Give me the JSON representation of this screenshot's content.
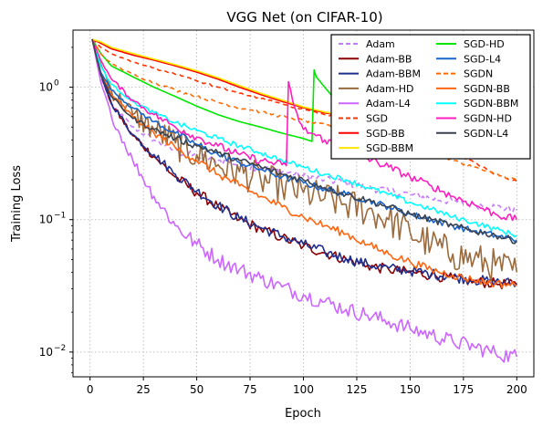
{
  "chart_data": {
    "type": "line",
    "title": "VGG Net (on CIFAR-10)",
    "xlabel": "Epoch",
    "ylabel": "Training Loss",
    "xlim": [
      -8,
      208
    ],
    "ylim": [
      0.0065,
      2.7
    ],
    "yscale": "log",
    "grid": true,
    "legend_position": "top-right",
    "legend_columns": 2,
    "xticks": [
      {
        "v": 0,
        "label": "0"
      },
      {
        "v": 25,
        "label": "25"
      },
      {
        "v": 50,
        "label": "50"
      },
      {
        "v": 75,
        "label": "75"
      },
      {
        "v": 100,
        "label": "100"
      },
      {
        "v": 125,
        "label": "125"
      },
      {
        "v": 150,
        "label": "150"
      },
      {
        "v": 175,
        "label": "175"
      },
      {
        "v": 200,
        "label": "200"
      }
    ],
    "yticks": [
      {
        "v": 1,
        "base": "10",
        "exp": "0"
      },
      {
        "v": 0.1,
        "base": "10",
        "exp": "−1"
      },
      {
        "v": 0.01,
        "base": "10",
        "exp": "−2"
      }
    ],
    "series": [
      {
        "name": "Adam",
        "color": "#c77cff",
        "dash": "dashed",
        "x": [
          1,
          5,
          10,
          20,
          30,
          40,
          50,
          60,
          70,
          80,
          90,
          100,
          110,
          120,
          130,
          140,
          150,
          160,
          170,
          180,
          190,
          200
        ],
        "y": [
          2.3,
          1.2,
          0.74,
          0.5,
          0.4,
          0.33,
          0.3,
          0.28,
          0.26,
          0.245,
          0.23,
          0.215,
          0.2,
          0.19,
          0.175,
          0.165,
          0.155,
          0.145,
          0.137,
          0.13,
          0.125,
          0.118
        ],
        "noise": 0.03
      },
      {
        "name": "Adam-BB",
        "color": "#8b0000",
        "dash": "solid",
        "x": [
          1,
          5,
          10,
          20,
          30,
          40,
          50,
          60,
          70,
          80,
          90,
          100,
          110,
          120,
          130,
          140,
          150,
          160,
          170,
          180,
          190,
          200
        ],
        "y": [
          2.3,
          1.25,
          0.75,
          0.43,
          0.3,
          0.21,
          0.16,
          0.125,
          0.1,
          0.085,
          0.073,
          0.063,
          0.056,
          0.05,
          0.045,
          0.042,
          0.04,
          0.038,
          0.036,
          0.034,
          0.033,
          0.032
        ],
        "noise": 0.04
      },
      {
        "name": "Adam-BBM",
        "color": "#1f2f8f",
        "dash": "solid",
        "x": [
          1,
          5,
          10,
          20,
          30,
          40,
          50,
          60,
          70,
          80,
          90,
          100,
          110,
          120,
          130,
          140,
          150,
          160,
          170,
          180,
          190,
          200
        ],
        "y": [
          2.3,
          1.25,
          0.76,
          0.44,
          0.31,
          0.22,
          0.165,
          0.128,
          0.102,
          0.087,
          0.075,
          0.065,
          0.057,
          0.051,
          0.046,
          0.043,
          0.041,
          0.039,
          0.037,
          0.035,
          0.034,
          0.033
        ],
        "noise": 0.04
      },
      {
        "name": "Adam-HD",
        "color": "#9b6a3c",
        "dash": "solid",
        "x": [
          1,
          5,
          10,
          20,
          30,
          40,
          50,
          60,
          70,
          80,
          90,
          100,
          110,
          120,
          130,
          140,
          150,
          160,
          170,
          180,
          190,
          200
        ],
        "y": [
          2.3,
          1.5,
          0.95,
          0.62,
          0.48,
          0.38,
          0.31,
          0.26,
          0.23,
          0.2,
          0.18,
          0.16,
          0.145,
          0.13,
          0.118,
          0.1,
          0.08,
          0.065,
          0.055,
          0.05,
          0.045,
          0.04
        ],
        "noise": 0.13
      },
      {
        "name": "Adam-L4",
        "color": "#cc66ff",
        "dash": "solid",
        "x": [
          1,
          5,
          10,
          20,
          30,
          40,
          50,
          60,
          70,
          80,
          90,
          100,
          110,
          120,
          130,
          140,
          150,
          160,
          170,
          180,
          190,
          200
        ],
        "y": [
          2.3,
          1.1,
          0.6,
          0.28,
          0.15,
          0.09,
          0.065,
          0.05,
          0.042,
          0.036,
          0.031,
          0.027,
          0.024,
          0.021,
          0.019,
          0.017,
          0.015,
          0.0135,
          0.012,
          0.011,
          0.0098,
          0.0092
        ],
        "noise": 0.06
      },
      {
        "name": "SGD",
        "color": "#ff3300",
        "dash": "dashed",
        "x": [
          1,
          5,
          10,
          20,
          30,
          40,
          50,
          60,
          70,
          80,
          90,
          100,
          110,
          120,
          130,
          140,
          150,
          160,
          170,
          180,
          190,
          200
        ],
        "y": [
          2.3,
          2.0,
          1.8,
          1.55,
          1.4,
          1.25,
          1.12,
          1.0,
          0.9,
          0.82,
          0.75,
          0.68,
          0.62,
          0.57,
          0.52,
          0.47,
          0.43,
          0.39,
          0.33,
          0.27,
          0.22,
          0.195
        ],
        "noise": 0.008
      },
      {
        "name": "SGD-BB",
        "color": "#ff0000",
        "dash": "solid",
        "x": [
          1,
          5,
          10,
          20,
          30,
          40,
          50,
          60,
          70,
          80,
          90,
          100,
          110,
          120
        ],
        "y": [
          2.3,
          2.15,
          1.95,
          1.75,
          1.6,
          1.45,
          1.3,
          1.15,
          1.0,
          0.88,
          0.78,
          0.7,
          0.64,
          0.6
        ],
        "noise": 0.0
      },
      {
        "name": "SGD-BBM",
        "color": "#ffe600",
        "dash": "solid",
        "x": [
          1,
          5,
          10,
          20,
          30,
          40,
          50,
          60,
          70,
          80,
          90,
          100,
          110,
          120
        ],
        "y": [
          2.3,
          2.2,
          2.0,
          1.8,
          1.63,
          1.48,
          1.33,
          1.18,
          1.03,
          0.9,
          0.8,
          0.71,
          0.65,
          0.61
        ],
        "noise": 0.0
      },
      {
        "name": "SGD-HD",
        "color": "#00e600",
        "dash": "solid",
        "x": [
          1,
          5,
          10,
          20,
          30,
          40,
          50,
          60,
          70,
          80,
          90,
          100,
          104,
          105,
          106,
          110,
          115,
          120
        ],
        "y": [
          2.3,
          1.8,
          1.45,
          1.2,
          1.0,
          0.85,
          0.72,
          0.62,
          0.55,
          0.5,
          0.45,
          0.41,
          0.39,
          1.35,
          1.2,
          1.0,
          0.8,
          0.65
        ],
        "noise": 0.0
      },
      {
        "name": "SGD-L4",
        "color": "#1a66cc",
        "dash": "solid",
        "x": [
          1,
          5,
          10,
          20,
          30,
          40,
          50,
          60,
          70,
          80,
          90,
          100,
          110,
          120,
          130,
          140,
          150,
          160,
          170,
          180,
          190,
          200
        ],
        "y": [
          2.3,
          1.3,
          0.95,
          0.7,
          0.55,
          0.45,
          0.37,
          0.31,
          0.27,
          0.24,
          0.21,
          0.19,
          0.17,
          0.155,
          0.14,
          0.125,
          0.11,
          0.1,
          0.09,
          0.082,
          0.076,
          0.07
        ],
        "noise": 0.025
      },
      {
        "name": "SGDN",
        "color": "#ff6a00",
        "dash": "dashed",
        "x": [
          1,
          5,
          10,
          20,
          30,
          40,
          50,
          60,
          70,
          80,
          90,
          100,
          110,
          120,
          130,
          140,
          150,
          160,
          170,
          180,
          190,
          200
        ],
        "y": [
          2.3,
          1.8,
          1.5,
          1.25,
          1.08,
          0.95,
          0.85,
          0.77,
          0.7,
          0.65,
          0.6,
          0.56,
          0.52,
          0.48,
          0.44,
          0.4,
          0.36,
          0.32,
          0.28,
          0.25,
          0.22,
          0.2
        ],
        "noise": 0.01
      },
      {
        "name": "SGDN-BB",
        "color": "#ff6611",
        "dash": "solid",
        "x": [
          1,
          5,
          10,
          20,
          30,
          40,
          50,
          60,
          70,
          80,
          90,
          100,
          110,
          120,
          130,
          140,
          150,
          160,
          170,
          180,
          190,
          200
        ],
        "y": [
          2.3,
          1.25,
          0.88,
          0.6,
          0.45,
          0.35,
          0.28,
          0.22,
          0.18,
          0.15,
          0.125,
          0.105,
          0.09,
          0.078,
          0.065,
          0.055,
          0.048,
          0.042,
          0.038,
          0.035,
          0.033,
          0.032
        ],
        "noise": 0.03
      },
      {
        "name": "SGDN-BBM",
        "color": "#00ffff",
        "dash": "solid",
        "x": [
          1,
          5,
          10,
          20,
          30,
          40,
          50,
          60,
          70,
          80,
          90,
          100,
          110,
          120,
          130,
          140,
          150,
          160,
          170,
          180,
          190,
          200
        ],
        "y": [
          2.3,
          1.45,
          1.05,
          0.78,
          0.64,
          0.54,
          0.47,
          0.41,
          0.36,
          0.32,
          0.28,
          0.25,
          0.22,
          0.2,
          0.175,
          0.155,
          0.135,
          0.12,
          0.105,
          0.095,
          0.085,
          0.076
        ],
        "noise": 0.02
      },
      {
        "name": "SGDN-HD",
        "color": "#ff1fbf",
        "dash": "solid",
        "x": [
          1,
          5,
          10,
          20,
          30,
          40,
          50,
          60,
          70,
          80,
          90,
          92,
          93,
          94,
          96,
          98,
          100,
          110,
          120,
          130,
          140,
          150,
          160,
          170,
          180,
          190,
          200
        ],
        "y": [
          2.3,
          1.6,
          1.15,
          0.8,
          0.62,
          0.5,
          0.42,
          0.36,
          0.31,
          0.28,
          0.26,
          0.255,
          1.1,
          0.95,
          0.7,
          0.55,
          0.48,
          0.4,
          0.34,
          0.29,
          0.25,
          0.21,
          0.18,
          0.15,
          0.13,
          0.11,
          0.1
        ],
        "noise": 0.03
      },
      {
        "name": "SGDN-L4",
        "color": "#3a4250",
        "dash": "solid",
        "x": [
          1,
          5,
          10,
          20,
          30,
          40,
          50,
          60,
          70,
          80,
          90,
          100,
          110,
          120,
          130,
          140,
          150,
          160,
          170,
          180,
          190,
          200
        ],
        "y": [
          2.3,
          1.25,
          0.85,
          0.58,
          0.48,
          0.41,
          0.36,
          0.32,
          0.28,
          0.25,
          0.22,
          0.2,
          0.175,
          0.155,
          0.14,
          0.125,
          0.11,
          0.1,
          0.09,
          0.082,
          0.076,
          0.069
        ],
        "noise": 0.025
      }
    ]
  }
}
